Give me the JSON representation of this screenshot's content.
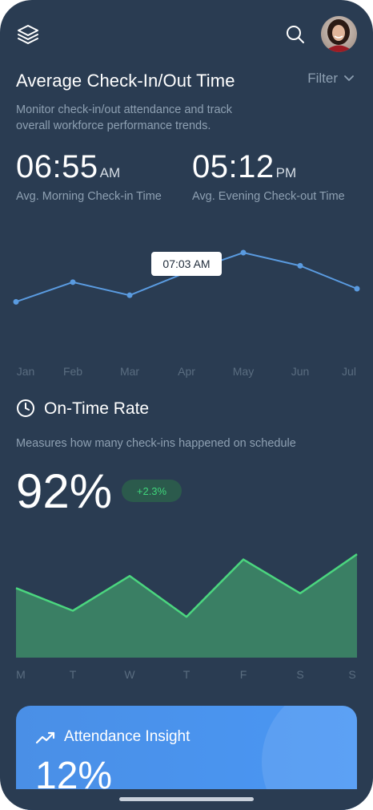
{
  "header": {
    "logo_icon": "layers-icon",
    "search_icon": "search-icon",
    "avatar_alt": "user-avatar"
  },
  "checkin": {
    "title": "Average Check-In/Out Time",
    "filter_label": "Filter",
    "description": "Monitor check-in/out attendance and track overall workforce performance trends.",
    "morning": {
      "time": "06:55",
      "suffix": "AM",
      "label": "Avg. Morning Check-in Time"
    },
    "evening": {
      "time": "05:12",
      "suffix": "PM",
      "label": "Avg. Evening Check-out Time"
    },
    "tooltip": "07:03 AM"
  },
  "ontime": {
    "title": "On-Time Rate",
    "description": "Measures how many check-ins happened on schedule",
    "value": "92%",
    "change": "+2.3%"
  },
  "insight": {
    "title": "Attendance Insight",
    "value": "12%"
  },
  "chart_data": [
    {
      "type": "line",
      "categories": [
        "Jan",
        "Feb",
        "Mar",
        "Apr",
        "May",
        "Jun",
        "Jul"
      ],
      "series": [
        {
          "values": [
            6.3,
            6.6,
            6.4,
            6.75,
            7.05,
            6.85,
            6.5
          ]
        }
      ],
      "ylim": [
        5.4,
        7.6
      ],
      "highlight": {
        "index": 4,
        "label": "07:03 AM"
      },
      "color": "#5a9be0"
    },
    {
      "type": "area",
      "categories": [
        "M",
        "T",
        "W",
        "T",
        "F",
        "S",
        "S"
      ],
      "series": [
        {
          "values": [
            80,
            54,
            94,
            47,
            113,
            74,
            119
          ]
        }
      ],
      "ylim": [
        0,
        120
      ],
      "color": "#4bd67f",
      "fill": "#3a7f64"
    }
  ]
}
